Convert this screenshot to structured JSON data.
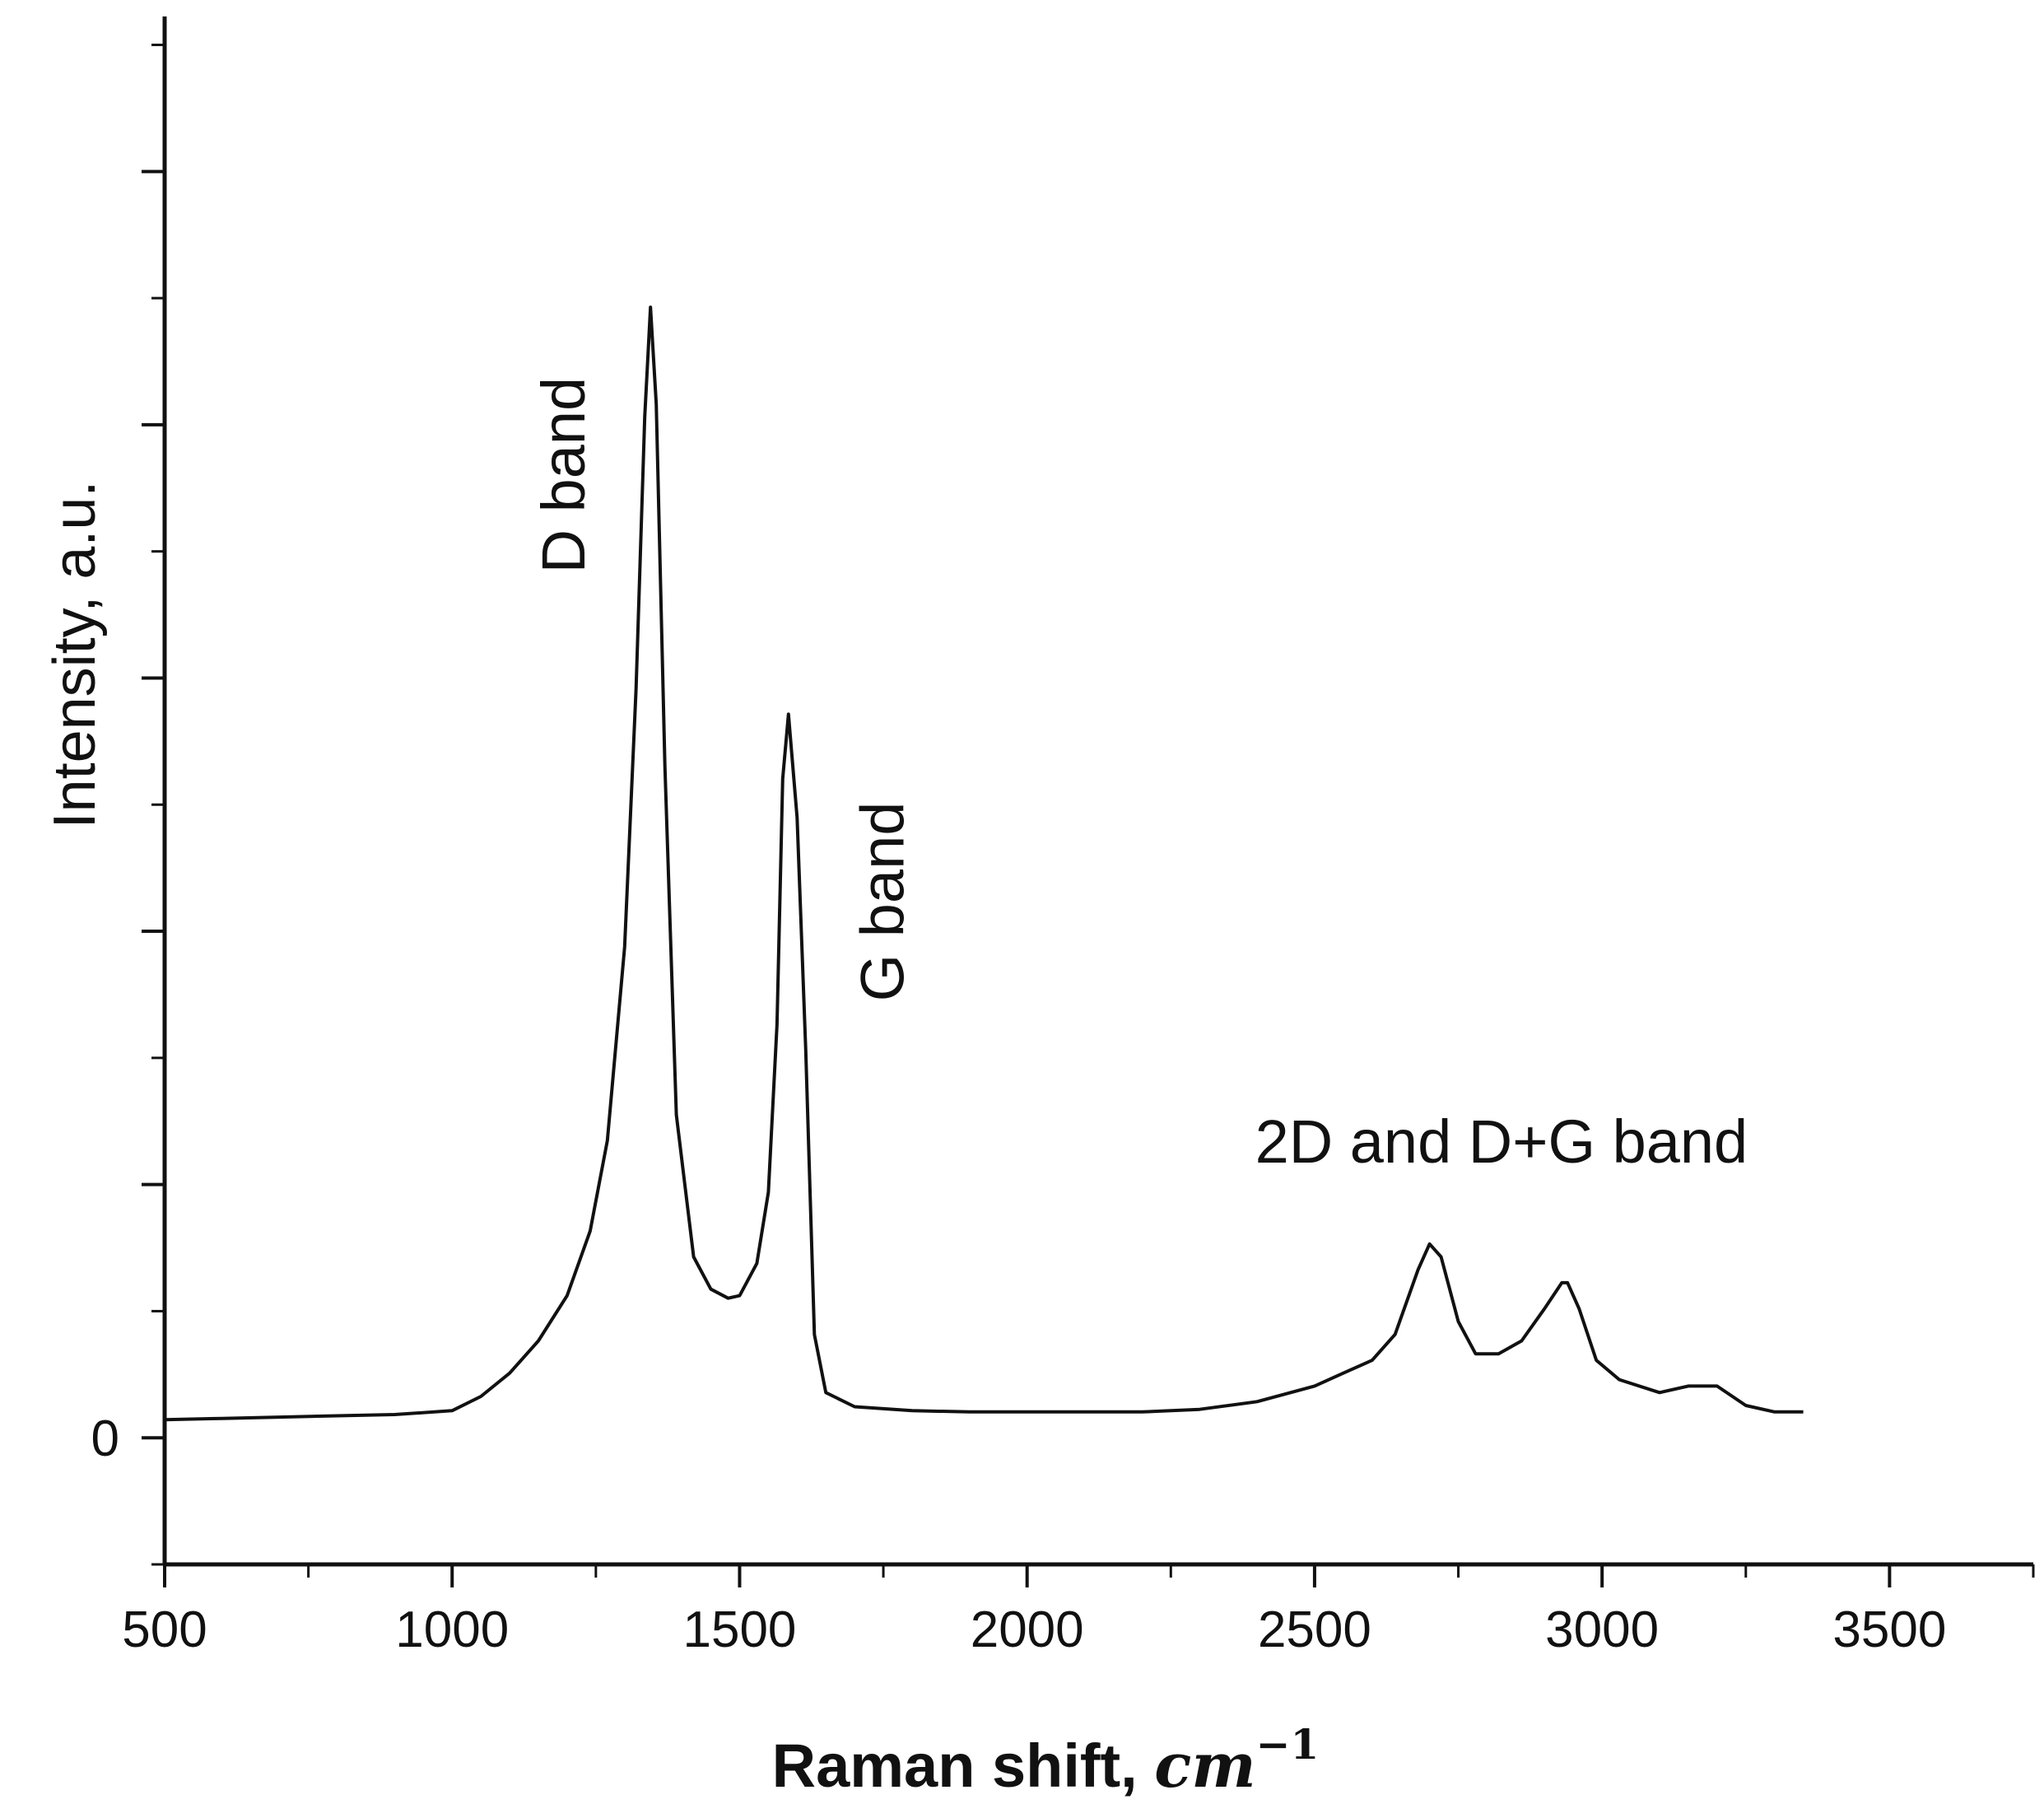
{
  "chart_data": {
    "type": "line",
    "title": "",
    "xlabel": "Raman shift, ",
    "xlabel_unit": "cm",
    "xlabel_exponent": "−1",
    "ylabel": "Intensity, a.u.",
    "xlim": [
      500,
      3750
    ],
    "ylim": [
      -0.098,
      1.1
    ],
    "x_ticks": [
      500,
      1000,
      1500,
      2000,
      2500,
      3000,
      3500
    ],
    "x_tick_labels": [
      "500",
      "1000",
      "1500",
      "2000",
      "2500",
      "3000",
      "3500"
    ],
    "y_tick_labels": [
      {
        "value": 0,
        "label": "0"
      }
    ],
    "grid": false,
    "legend": "none",
    "line_color": "#111111",
    "series": [
      {
        "x": [
          500,
          600,
          700,
          800,
          900,
          1000,
          1050,
          1100,
          1150,
          1200,
          1240,
          1270,
          1300,
          1320,
          1335,
          1345,
          1355,
          1370,
          1390,
          1420,
          1450,
          1480,
          1500,
          1530,
          1550,
          1565,
          1575,
          1585,
          1600,
          1615,
          1630,
          1650,
          1700,
          1800,
          1900,
          2000,
          2200,
          2300,
          2400,
          2500,
          2550,
          2600,
          2640,
          2680,
          2700,
          2720,
          2750,
          2780,
          2820,
          2860,
          2900,
          2930,
          2940,
          2960,
          2990,
          3030,
          3100,
          3150,
          3200,
          3250,
          3300,
          3350
        ],
        "y": [
          0.014,
          0.015,
          0.016,
          0.017,
          0.018,
          0.021,
          0.032,
          0.05,
          0.075,
          0.11,
          0.16,
          0.23,
          0.38,
          0.58,
          0.79,
          0.875,
          0.8,
          0.52,
          0.25,
          0.14,
          0.115,
          0.108,
          0.11,
          0.135,
          0.19,
          0.32,
          0.51,
          0.56,
          0.48,
          0.3,
          0.08,
          0.035,
          0.024,
          0.021,
          0.02,
          0.02,
          0.02,
          0.022,
          0.028,
          0.04,
          0.05,
          0.06,
          0.08,
          0.13,
          0.15,
          0.14,
          0.09,
          0.065,
          0.065,
          0.075,
          0.1,
          0.12,
          0.12,
          0.1,
          0.06,
          0.045,
          0.035,
          0.04,
          0.04,
          0.025,
          0.02,
          0.02
        ]
      }
    ],
    "annotations": [
      {
        "text": "D band",
        "x": 1230,
        "y": 0.745,
        "rotation": -90
      },
      {
        "text": "G band",
        "x": 1785,
        "y": 0.415,
        "rotation": -90
      },
      {
        "text": "2D and D+G band",
        "x": 2825,
        "y": 0.213,
        "rotation": 0
      }
    ]
  }
}
